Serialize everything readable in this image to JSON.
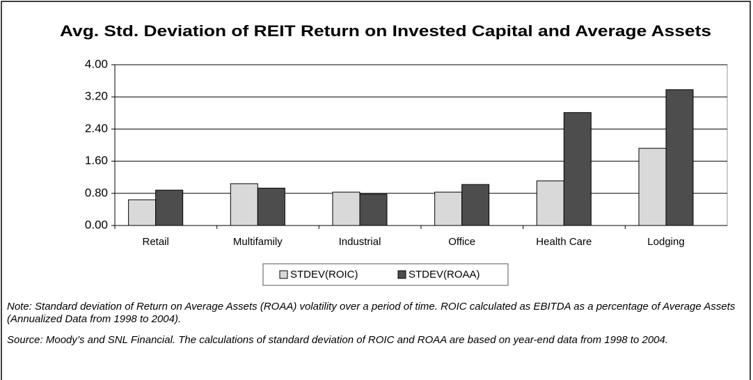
{
  "chart_data": {
    "type": "bar",
    "title": "Avg. Std. Deviation of REIT Return on Invested Capital and Average Assets",
    "categories": [
      "Retail",
      "Multifamily",
      "Industrial",
      "Office",
      "Health Care",
      "Lodging"
    ],
    "series": [
      {
        "name": "STDEV(ROIC)",
        "color": "#d9d9d9",
        "values": [
          0.64,
          1.04,
          0.83,
          0.83,
          1.11,
          1.92
        ]
      },
      {
        "name": "STDEV(ROAA)",
        "color": "#4d4d4d",
        "values": [
          0.88,
          0.93,
          0.78,
          1.02,
          2.81,
          3.38
        ]
      }
    ],
    "ylim": [
      0,
      4
    ],
    "yticks": [
      {
        "value": 0,
        "label": "0.00"
      },
      {
        "value": 0.8,
        "label": "0.80"
      },
      {
        "value": 1.6,
        "label": "1.60"
      },
      {
        "value": 2.4,
        "label": "2.40"
      },
      {
        "value": 3.2,
        "label": "3.20"
      },
      {
        "value": 4,
        "label": "4.00"
      }
    ],
    "grid": true,
    "legend": "bottom",
    "notes": [
      "Note: Standard deviation of Return on Average Assets (ROAA) volatility over a period of time.  ROIC calculated as EBITDA as a percentage of Average Assets (Annualized Data from 1998 to 2004).",
      "Source: Moody’s and SNL Financial. The calculations of standard deviation of ROIC and ROAA are based on year-end data from 1998 to 2004."
    ]
  }
}
